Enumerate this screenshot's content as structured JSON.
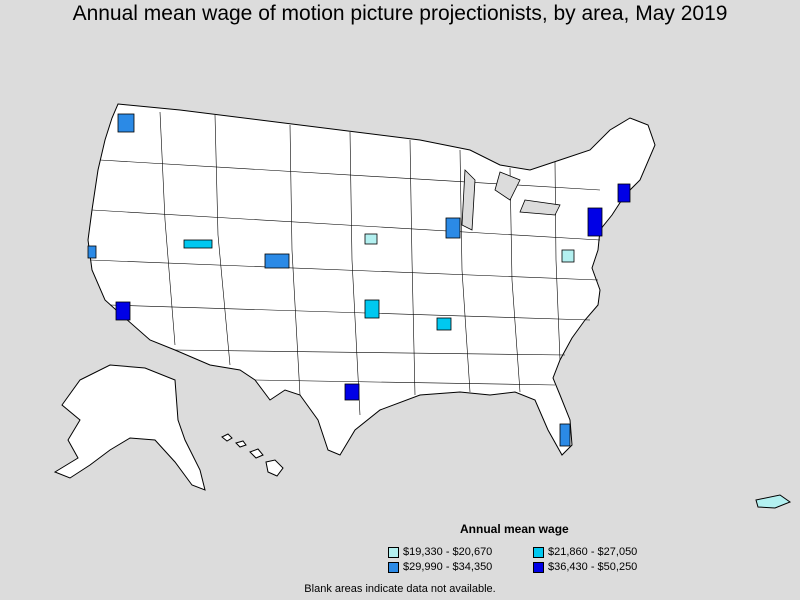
{
  "title": "Annual mean wage of motion picture projectionists, by area, May 2019",
  "legend": {
    "title": "Annual mean wage",
    "items": [
      {
        "label": "$19,330 - $20,670",
        "color": "#b3f0f0"
      },
      {
        "label": "$21,860 - $27,050",
        "color": "#00c8f0"
      },
      {
        "label": "$29,990 - $34,350",
        "color": "#2b8ae6"
      },
      {
        "label": "$36,430 - $50,250",
        "color": "#0000e6"
      }
    ]
  },
  "note": "Blank areas indicate data not available.",
  "colors": {
    "background": "#dcdcdc",
    "land": "#ffffff",
    "border": "#000000"
  }
}
